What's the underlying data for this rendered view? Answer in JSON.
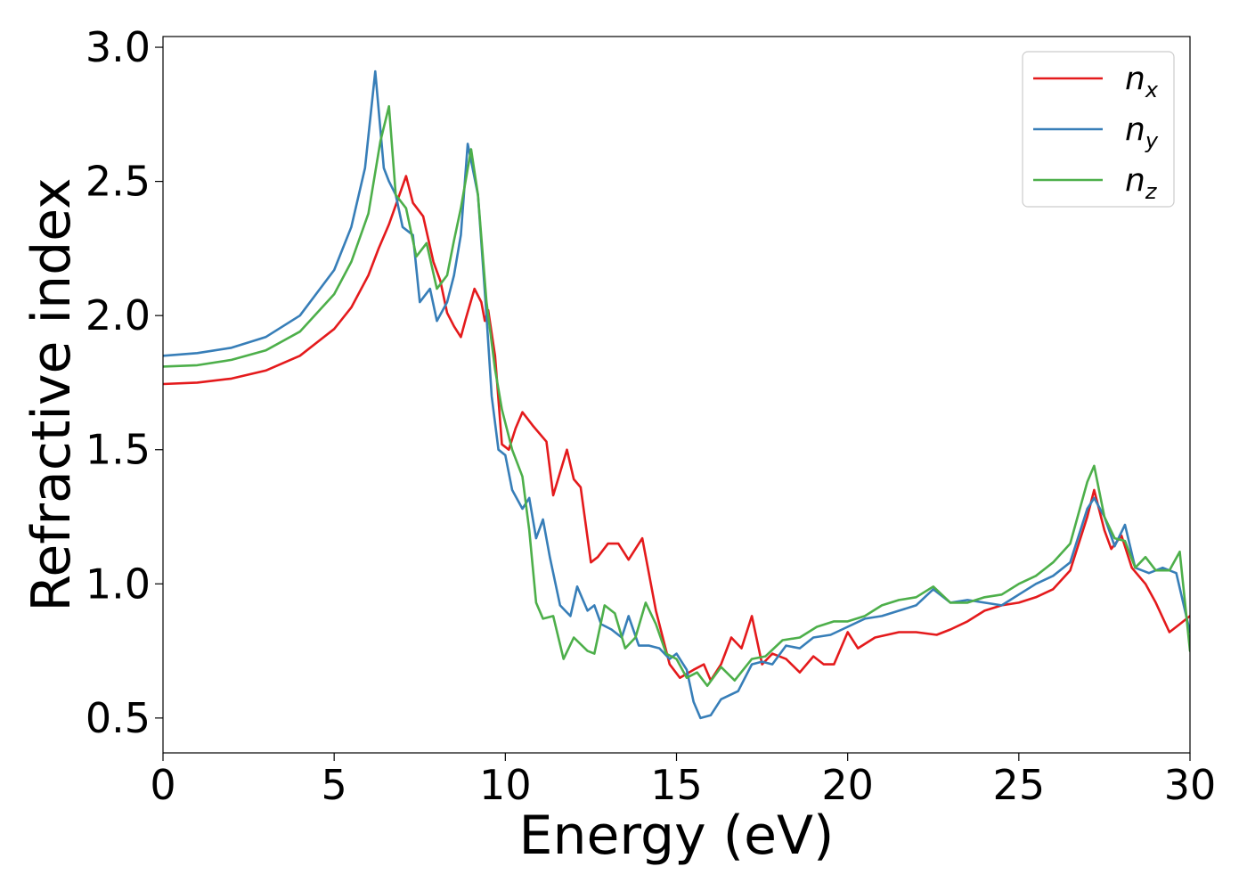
{
  "chart_data": {
    "type": "line",
    "title": "",
    "xlabel": "Energy (eV)",
    "ylabel": "Refractive index",
    "xlim": [
      0,
      30
    ],
    "ylim": [
      0.37,
      3.04
    ],
    "xticks": [
      0,
      5,
      10,
      15,
      20,
      25,
      30
    ],
    "yticks": [
      0.5,
      1.0,
      1.5,
      2.0,
      2.5,
      3.0
    ],
    "xtick_labels": [
      "0",
      "5",
      "10",
      "15",
      "20",
      "25",
      "30"
    ],
    "ytick_labels": [
      "0.5",
      "1.0",
      "1.5",
      "2.0",
      "2.5",
      "3.0"
    ],
    "grid": false,
    "legend": {
      "placement": "top-right"
    },
    "series": [
      {
        "name": "n",
        "sub": "x",
        "color": "#e41a1c",
        "points": [
          [
            0,
            1.745
          ],
          [
            1,
            1.75
          ],
          [
            2,
            1.765
          ],
          [
            3,
            1.795
          ],
          [
            4,
            1.85
          ],
          [
            5,
            1.95
          ],
          [
            5.5,
            2.03
          ],
          [
            6,
            2.15
          ],
          [
            6.3,
            2.25
          ],
          [
            6.6,
            2.34
          ],
          [
            7.1,
            2.52
          ],
          [
            7.3,
            2.42
          ],
          [
            7.6,
            2.37
          ],
          [
            7.9,
            2.2
          ],
          [
            8.1,
            2.13
          ],
          [
            8.3,
            2.01
          ],
          [
            8.5,
            1.96
          ],
          [
            8.7,
            1.92
          ],
          [
            8.85,
            1.99
          ],
          [
            9.1,
            2.1
          ],
          [
            9.3,
            2.05
          ],
          [
            9.4,
            1.98
          ],
          [
            9.5,
            2.02
          ],
          [
            9.7,
            1.85
          ],
          [
            9.9,
            1.52
          ],
          [
            10.1,
            1.5
          ],
          [
            10.3,
            1.58
          ],
          [
            10.5,
            1.64
          ],
          [
            10.8,
            1.59
          ],
          [
            11.2,
            1.53
          ],
          [
            11.4,
            1.33
          ],
          [
            11.8,
            1.5
          ],
          [
            12.0,
            1.39
          ],
          [
            12.2,
            1.36
          ],
          [
            12.5,
            1.08
          ],
          [
            12.7,
            1.1
          ],
          [
            13.0,
            1.15
          ],
          [
            13.3,
            1.15
          ],
          [
            13.6,
            1.09
          ],
          [
            14.0,
            1.17
          ],
          [
            14.4,
            0.9
          ],
          [
            14.8,
            0.7
          ],
          [
            15.1,
            0.65
          ],
          [
            15.5,
            0.68
          ],
          [
            15.8,
            0.7
          ],
          [
            16.0,
            0.64
          ],
          [
            16.3,
            0.7
          ],
          [
            16.6,
            0.8
          ],
          [
            16.9,
            0.76
          ],
          [
            17.2,
            0.88
          ],
          [
            17.5,
            0.7
          ],
          [
            17.8,
            0.74
          ],
          [
            18.2,
            0.72
          ],
          [
            18.6,
            0.67
          ],
          [
            19.0,
            0.73
          ],
          [
            19.3,
            0.7
          ],
          [
            19.6,
            0.7
          ],
          [
            20.0,
            0.82
          ],
          [
            20.3,
            0.76
          ],
          [
            20.8,
            0.8
          ],
          [
            21.5,
            0.82
          ],
          [
            22.0,
            0.82
          ],
          [
            22.6,
            0.81
          ],
          [
            23.0,
            0.83
          ],
          [
            23.5,
            0.86
          ],
          [
            24.0,
            0.9
          ],
          [
            24.5,
            0.92
          ],
          [
            25.0,
            0.93
          ],
          [
            25.5,
            0.95
          ],
          [
            26.0,
            0.98
          ],
          [
            26.5,
            1.05
          ],
          [
            27.0,
            1.25
          ],
          [
            27.2,
            1.35
          ],
          [
            27.5,
            1.2
          ],
          [
            27.7,
            1.13
          ],
          [
            28.0,
            1.18
          ],
          [
            28.3,
            1.06
          ],
          [
            28.7,
            1.0
          ],
          [
            29.0,
            0.93
          ],
          [
            29.4,
            0.82
          ],
          [
            29.7,
            0.85
          ],
          [
            30.0,
            0.88
          ]
        ]
      },
      {
        "name": "n",
        "sub": "y",
        "color": "#377eb8",
        "points": [
          [
            0,
            1.85
          ],
          [
            1,
            1.86
          ],
          [
            2,
            1.88
          ],
          [
            3,
            1.92
          ],
          [
            4,
            2.0
          ],
          [
            5,
            2.17
          ],
          [
            5.5,
            2.33
          ],
          [
            5.9,
            2.55
          ],
          [
            6.2,
            2.91
          ],
          [
            6.45,
            2.55
          ],
          [
            6.6,
            2.5
          ],
          [
            6.8,
            2.45
          ],
          [
            7.0,
            2.33
          ],
          [
            7.3,
            2.3
          ],
          [
            7.5,
            2.05
          ],
          [
            7.8,
            2.1
          ],
          [
            8.0,
            1.98
          ],
          [
            8.3,
            2.05
          ],
          [
            8.5,
            2.15
          ],
          [
            8.7,
            2.3
          ],
          [
            8.9,
            2.64
          ],
          [
            9.2,
            2.45
          ],
          [
            9.45,
            2.0
          ],
          [
            9.6,
            1.7
          ],
          [
            9.8,
            1.5
          ],
          [
            10.0,
            1.48
          ],
          [
            10.2,
            1.35
          ],
          [
            10.5,
            1.28
          ],
          [
            10.7,
            1.32
          ],
          [
            10.9,
            1.17
          ],
          [
            11.1,
            1.24
          ],
          [
            11.3,
            1.1
          ],
          [
            11.6,
            0.92
          ],
          [
            11.9,
            0.88
          ],
          [
            12.1,
            0.99
          ],
          [
            12.4,
            0.9
          ],
          [
            12.6,
            0.92
          ],
          [
            12.8,
            0.85
          ],
          [
            13.1,
            0.83
          ],
          [
            13.4,
            0.8
          ],
          [
            13.6,
            0.88
          ],
          [
            13.9,
            0.77
          ],
          [
            14.2,
            0.77
          ],
          [
            14.5,
            0.76
          ],
          [
            14.8,
            0.72
          ],
          [
            15.0,
            0.74
          ],
          [
            15.3,
            0.68
          ],
          [
            15.5,
            0.56
          ],
          [
            15.7,
            0.5
          ],
          [
            16.0,
            0.51
          ],
          [
            16.3,
            0.57
          ],
          [
            16.8,
            0.6
          ],
          [
            17.2,
            0.7
          ],
          [
            17.5,
            0.71
          ],
          [
            17.8,
            0.7
          ],
          [
            18.2,
            0.77
          ],
          [
            18.6,
            0.76
          ],
          [
            19.0,
            0.8
          ],
          [
            19.5,
            0.81
          ],
          [
            20.0,
            0.84
          ],
          [
            20.5,
            0.87
          ],
          [
            21.0,
            0.88
          ],
          [
            21.5,
            0.9
          ],
          [
            22.0,
            0.92
          ],
          [
            22.5,
            0.98
          ],
          [
            23.0,
            0.93
          ],
          [
            23.5,
            0.94
          ],
          [
            24.0,
            0.93
          ],
          [
            24.5,
            0.92
          ],
          [
            25.0,
            0.96
          ],
          [
            25.5,
            1.0
          ],
          [
            26.0,
            1.03
          ],
          [
            26.5,
            1.08
          ],
          [
            27.0,
            1.28
          ],
          [
            27.2,
            1.32
          ],
          [
            27.5,
            1.25
          ],
          [
            27.8,
            1.14
          ],
          [
            28.1,
            1.22
          ],
          [
            28.4,
            1.06
          ],
          [
            28.8,
            1.04
          ],
          [
            29.2,
            1.06
          ],
          [
            29.6,
            1.04
          ],
          [
            30.0,
            0.82
          ]
        ]
      },
      {
        "name": "n",
        "sub": "z",
        "color": "#4daf4a",
        "points": [
          [
            0,
            1.81
          ],
          [
            1,
            1.815
          ],
          [
            2,
            1.835
          ],
          [
            3,
            1.87
          ],
          [
            4,
            1.94
          ],
          [
            5,
            2.08
          ],
          [
            5.5,
            2.2
          ],
          [
            6.0,
            2.38
          ],
          [
            6.35,
            2.65
          ],
          [
            6.6,
            2.78
          ],
          [
            6.8,
            2.45
          ],
          [
            7.1,
            2.4
          ],
          [
            7.4,
            2.22
          ],
          [
            7.7,
            2.27
          ],
          [
            8.0,
            2.1
          ],
          [
            8.3,
            2.15
          ],
          [
            8.5,
            2.28
          ],
          [
            8.7,
            2.4
          ],
          [
            9.0,
            2.62
          ],
          [
            9.2,
            2.45
          ],
          [
            9.45,
            2.05
          ],
          [
            9.7,
            1.8
          ],
          [
            9.9,
            1.65
          ],
          [
            10.2,
            1.5
          ],
          [
            10.5,
            1.4
          ],
          [
            10.7,
            1.2
          ],
          [
            10.9,
            0.93
          ],
          [
            11.1,
            0.87
          ],
          [
            11.4,
            0.88
          ],
          [
            11.7,
            0.72
          ],
          [
            12.0,
            0.8
          ],
          [
            12.4,
            0.75
          ],
          [
            12.6,
            0.74
          ],
          [
            12.9,
            0.92
          ],
          [
            13.2,
            0.89
          ],
          [
            13.5,
            0.76
          ],
          [
            13.8,
            0.8
          ],
          [
            14.1,
            0.93
          ],
          [
            14.4,
            0.85
          ],
          [
            14.7,
            0.74
          ],
          [
            15.0,
            0.72
          ],
          [
            15.3,
            0.65
          ],
          [
            15.6,
            0.67
          ],
          [
            15.9,
            0.62
          ],
          [
            16.3,
            0.69
          ],
          [
            16.7,
            0.64
          ],
          [
            17.2,
            0.72
          ],
          [
            17.6,
            0.73
          ],
          [
            18.1,
            0.79
          ],
          [
            18.6,
            0.8
          ],
          [
            19.1,
            0.84
          ],
          [
            19.6,
            0.86
          ],
          [
            20.0,
            0.86
          ],
          [
            20.5,
            0.88
          ],
          [
            21.0,
            0.92
          ],
          [
            21.5,
            0.94
          ],
          [
            22.0,
            0.95
          ],
          [
            22.5,
            0.99
          ],
          [
            23.0,
            0.93
          ],
          [
            23.5,
            0.93
          ],
          [
            24.0,
            0.95
          ],
          [
            24.5,
            0.96
          ],
          [
            25.0,
            1.0
          ],
          [
            25.5,
            1.03
          ],
          [
            26.0,
            1.08
          ],
          [
            26.5,
            1.15
          ],
          [
            27.0,
            1.38
          ],
          [
            27.2,
            1.44
          ],
          [
            27.5,
            1.25
          ],
          [
            27.8,
            1.17
          ],
          [
            28.1,
            1.16
          ],
          [
            28.4,
            1.06
          ],
          [
            28.7,
            1.1
          ],
          [
            29.0,
            1.05
          ],
          [
            29.4,
            1.05
          ],
          [
            29.7,
            1.12
          ],
          [
            30.0,
            0.75
          ]
        ]
      }
    ]
  }
}
